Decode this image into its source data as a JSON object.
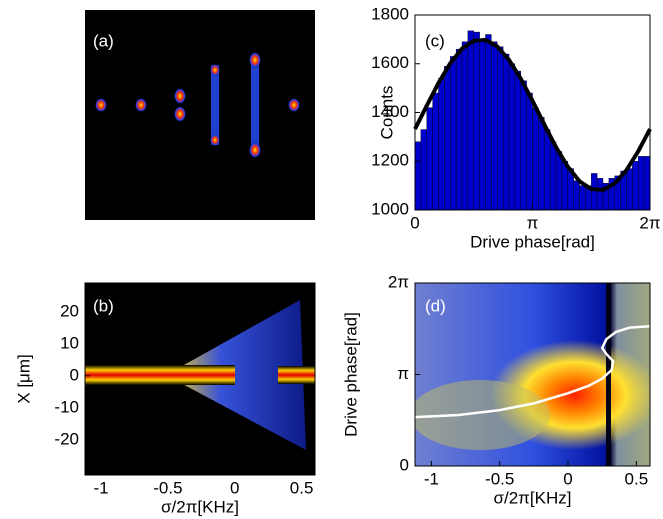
{
  "chart_data": [
    {
      "type": "image",
      "label": "(a)"
    },
    {
      "type": "heatmap",
      "label": "(b)",
      "xlabel": "σ/2π[KHz]",
      "ylabel": "X [μm]",
      "xlim": [
        -1.12,
        0.6
      ],
      "xticks": [
        -1,
        -0.5,
        0,
        0.5
      ],
      "ylim": [
        -31,
        29
      ],
      "yticks": [
        -20,
        -10,
        0,
        10,
        20
      ]
    },
    {
      "type": "histogram",
      "label": "(c)",
      "xlabel": "Drive phase[rad]",
      "ylabel": "Counts",
      "xlim": [
        0,
        6.2832
      ],
      "xticks": [
        0,
        {
          "value": 3.1416,
          "label": "π"
        },
        {
          "value": 6.2832,
          "label": "2π"
        }
      ],
      "ylim": [
        1000,
        1800
      ],
      "yticks": [
        1000,
        1200,
        1400,
        1600,
        1800
      ],
      "color": "#0000cc",
      "bins": [
        0,
        0.1571,
        0.3142,
        0.4712,
        0.6283,
        0.7854,
        0.9425,
        1.0996,
        1.2566,
        1.4137,
        1.5708,
        1.7279,
        1.885,
        2.042,
        2.1991,
        2.3562,
        2.5133,
        2.6704,
        2.8274,
        2.9845,
        3.1416,
        3.2987,
        3.4558,
        3.6128,
        3.7699,
        3.927,
        4.0841,
        4.2412,
        4.3982,
        4.5553,
        4.7124,
        4.8695,
        5.0265,
        5.1836,
        5.3407,
        5.4978,
        5.6549,
        5.8119,
        5.969,
        6.1261,
        6.2832
      ],
      "counts": [
        1280,
        1330,
        1420,
        1480,
        1540,
        1590,
        1630,
        1660,
        1690,
        1735,
        1730,
        1700,
        1720,
        1690,
        1670,
        1640,
        1600,
        1570,
        1530,
        1480,
        1420,
        1380,
        1330,
        1280,
        1240,
        1200,
        1170,
        1120,
        1100,
        1100,
        1150,
        1130,
        1110,
        1130,
        1140,
        1160,
        1170,
        1200,
        1220,
        1220
      ],
      "fit": {
        "color": "#000000",
        "x": [
          0,
          0.3142,
          0.6283,
          0.9425,
          1.2566,
          1.5708,
          1.885,
          2.1991,
          2.5133,
          2.8274,
          3.1416,
          3.4558,
          3.7699,
          4.0841,
          4.3982,
          4.7124,
          5.0265,
          5.3407,
          5.6549,
          5.969,
          6.2832
        ],
        "values": [
          1332,
          1428,
          1521,
          1602,
          1662,
          1694,
          1698,
          1671,
          1616,
          1539,
          1448,
          1351,
          1258,
          1178,
          1118,
          1086,
          1082,
          1109,
          1164,
          1241,
          1332
        ]
      }
    },
    {
      "type": "heatmap",
      "label": "(d)",
      "xlabel": "σ/2π[KHz]",
      "ylabel": "Drive phase[rad]",
      "xlim": [
        -1.12,
        0.6
      ],
      "xticks": [
        -1,
        -0.5,
        0,
        0.5
      ],
      "ylim": [
        0,
        6.2832
      ],
      "yticks": [
        0,
        {
          "value": 3.1416,
          "label": "π"
        },
        {
          "value": 6.2832,
          "label": "2π"
        }
      ],
      "series": [
        {
          "color": "#ffffff",
          "x": [
            -1.12,
            -0.8,
            -0.5,
            -0.25,
            0,
            0.15,
            0.25,
            0.32,
            0.33,
            0.28,
            0.25,
            0.28,
            0.35,
            0.45,
            0.6
          ],
          "values": [
            1.68,
            1.75,
            1.92,
            2.15,
            2.5,
            2.75,
            3.0,
            3.3,
            3.6,
            3.85,
            4.05,
            4.35,
            4.6,
            4.75,
            4.8
          ]
        }
      ]
    }
  ]
}
